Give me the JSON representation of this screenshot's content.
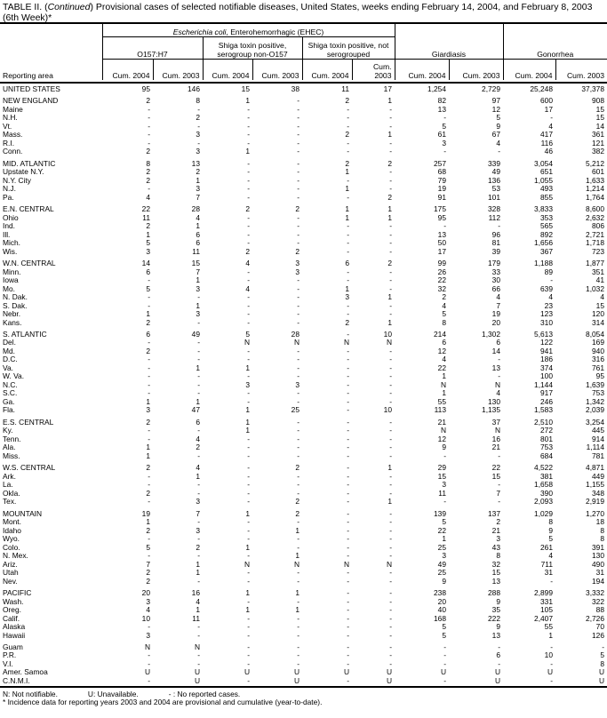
{
  "title": {
    "prefix": "TABLE II. (",
    "italic": "Continued",
    "rest": ") Provisional cases of selected notifiable diseases, United States, weeks ending February 14, 2004, and February 8, 2003 (6th Week)*"
  },
  "header": {
    "ecoli_italic": "Escherichia coli",
    "ecoli_rest": ", Enterohemorrhagic (EHEC)",
    "o157": "O157:H7",
    "shiga_non": "Shiga toxin positive, serogroup non-O157",
    "shiga_not": "Shiga toxin positive, not serogrouped",
    "giardiasis": "Giardiasis",
    "gonorrhea": "Gonorrhea",
    "reporting_area": "Reporting area",
    "cum2004": "Cum. 2004",
    "cum2003": "Cum. 2003"
  },
  "groups": [
    [
      [
        "UNITED STATES",
        "95",
        "146",
        "15",
        "38",
        "11",
        "17",
        "1,254",
        "2,729",
        "25,248",
        "37,378"
      ]
    ],
    [
      [
        "NEW ENGLAND",
        "2",
        "8",
        "1",
        "-",
        "2",
        "1",
        "82",
        "97",
        "600",
        "908"
      ],
      [
        "Maine",
        "-",
        "-",
        "-",
        "-",
        "-",
        "-",
        "13",
        "12",
        "17",
        "15"
      ],
      [
        "N.H.",
        "-",
        "2",
        "-",
        "-",
        "-",
        "-",
        "-",
        "5",
        "-",
        "15"
      ],
      [
        "Vt.",
        "-",
        "-",
        "-",
        "-",
        "-",
        "-",
        "5",
        "9",
        "4",
        "14"
      ],
      [
        "Mass.",
        "-",
        "3",
        "-",
        "-",
        "2",
        "1",
        "61",
        "67",
        "417",
        "361"
      ],
      [
        "R.I.",
        "-",
        "-",
        "-",
        "-",
        "-",
        "-",
        "3",
        "4",
        "116",
        "121"
      ],
      [
        "Conn.",
        "2",
        "3",
        "1",
        "-",
        "-",
        "-",
        "-",
        "-",
        "46",
        "382"
      ]
    ],
    [
      [
        "MID. ATLANTIC",
        "8",
        "13",
        "-",
        "-",
        "2",
        "2",
        "257",
        "339",
        "3,054",
        "5,212"
      ],
      [
        "Upstate N.Y.",
        "2",
        "2",
        "-",
        "-",
        "1",
        "-",
        "68",
        "49",
        "651",
        "601"
      ],
      [
        "N.Y. City",
        "2",
        "1",
        "-",
        "-",
        "-",
        "-",
        "79",
        "136",
        "1,055",
        "1,633"
      ],
      [
        "N.J.",
        "-",
        "3",
        "-",
        "-",
        "1",
        "-",
        "19",
        "53",
        "493",
        "1,214"
      ],
      [
        "Pa.",
        "4",
        "7",
        "-",
        "-",
        "-",
        "2",
        "91",
        "101",
        "855",
        "1,764"
      ]
    ],
    [
      [
        "E.N. CENTRAL",
        "22",
        "28",
        "2",
        "2",
        "1",
        "1",
        "175",
        "328",
        "3,833",
        "8,600"
      ],
      [
        "Ohio",
        "11",
        "4",
        "-",
        "-",
        "1",
        "1",
        "95",
        "112",
        "353",
        "2,632"
      ],
      [
        "Ind.",
        "2",
        "1",
        "-",
        "-",
        "-",
        "-",
        "-",
        "-",
        "565",
        "806"
      ],
      [
        "Ill.",
        "1",
        "6",
        "-",
        "-",
        "-",
        "-",
        "13",
        "96",
        "892",
        "2,721"
      ],
      [
        "Mich.",
        "5",
        "6",
        "-",
        "-",
        "-",
        "-",
        "50",
        "81",
        "1,656",
        "1,718"
      ],
      [
        "Wis.",
        "3",
        "11",
        "2",
        "2",
        "-",
        "-",
        "17",
        "39",
        "367",
        "723"
      ]
    ],
    [
      [
        "W.N. CENTRAL",
        "14",
        "15",
        "4",
        "3",
        "6",
        "2",
        "99",
        "179",
        "1,188",
        "1,877"
      ],
      [
        "Minn.",
        "6",
        "7",
        "-",
        "3",
        "-",
        "-",
        "26",
        "33",
        "89",
        "351"
      ],
      [
        "Iowa",
        "-",
        "1",
        "-",
        "-",
        "-",
        "-",
        "22",
        "30",
        "-",
        "41"
      ],
      [
        "Mo.",
        "5",
        "3",
        "4",
        "-",
        "1",
        "-",
        "32",
        "66",
        "639",
        "1,032"
      ],
      [
        "N. Dak.",
        "-",
        "-",
        "-",
        "-",
        "3",
        "1",
        "2",
        "4",
        "4",
        "4"
      ],
      [
        "S. Dak.",
        "-",
        "1",
        "-",
        "-",
        "-",
        "-",
        "4",
        "7",
        "23",
        "15"
      ],
      [
        "Nebr.",
        "1",
        "3",
        "-",
        "-",
        "-",
        "-",
        "5",
        "19",
        "123",
        "120"
      ],
      [
        "Kans.",
        "2",
        "-",
        "-",
        "-",
        "2",
        "1",
        "8",
        "20",
        "310",
        "314"
      ]
    ],
    [
      [
        "S. ATLANTIC",
        "6",
        "49",
        "5",
        "28",
        "-",
        "10",
        "214",
        "1,302",
        "5,613",
        "8,054"
      ],
      [
        "Del.",
        "-",
        "-",
        "N",
        "N",
        "N",
        "N",
        "6",
        "6",
        "122",
        "169"
      ],
      [
        "Md.",
        "2",
        "-",
        "-",
        "-",
        "-",
        "-",
        "12",
        "14",
        "941",
        "940"
      ],
      [
        "D.C.",
        "-",
        "-",
        "-",
        "-",
        "-",
        "-",
        "4",
        "-",
        "186",
        "316"
      ],
      [
        "Va.",
        "-",
        "1",
        "1",
        "-",
        "-",
        "-",
        "22",
        "13",
        "374",
        "761"
      ],
      [
        "W. Va.",
        "-",
        "-",
        "-",
        "-",
        "-",
        "-",
        "1",
        "-",
        "100",
        "95"
      ],
      [
        "N.C.",
        "-",
        "-",
        "3",
        "3",
        "-",
        "-",
        "N",
        "N",
        "1,144",
        "1,639"
      ],
      [
        "S.C.",
        "-",
        "-",
        "-",
        "-",
        "-",
        "-",
        "1",
        "4",
        "917",
        "753"
      ],
      [
        "Ga.",
        "1",
        "1",
        "-",
        "-",
        "-",
        "-",
        "55",
        "130",
        "246",
        "1,342"
      ],
      [
        "Fla.",
        "3",
        "47",
        "1",
        "25",
        "-",
        "10",
        "113",
        "1,135",
        "1,583",
        "2,039"
      ]
    ],
    [
      [
        "E.S. CENTRAL",
        "2",
        "6",
        "1",
        "-",
        "-",
        "-",
        "21",
        "37",
        "2,510",
        "3,254"
      ],
      [
        "Ky.",
        "-",
        "-",
        "1",
        "-",
        "-",
        "-",
        "N",
        "N",
        "272",
        "445"
      ],
      [
        "Tenn.",
        "-",
        "4",
        "-",
        "-",
        "-",
        "-",
        "12",
        "16",
        "801",
        "914"
      ],
      [
        "Ala.",
        "1",
        "2",
        "-",
        "-",
        "-",
        "-",
        "9",
        "21",
        "753",
        "1,114"
      ],
      [
        "Miss.",
        "1",
        "-",
        "-",
        "-",
        "-",
        "-",
        "-",
        "-",
        "684",
        "781"
      ]
    ],
    [
      [
        "W.S. CENTRAL",
        "2",
        "4",
        "-",
        "2",
        "-",
        "1",
        "29",
        "22",
        "4,522",
        "4,871"
      ],
      [
        "Ark.",
        "-",
        "1",
        "-",
        "-",
        "-",
        "-",
        "15",
        "15",
        "381",
        "449"
      ],
      [
        "La.",
        "-",
        "-",
        "-",
        "-",
        "-",
        "-",
        "3",
        "-",
        "1,658",
        "1,155"
      ],
      [
        "Okla.",
        "2",
        "-",
        "-",
        "-",
        "-",
        "-",
        "11",
        "7",
        "390",
        "348"
      ],
      [
        "Tex.",
        "-",
        "3",
        "-",
        "2",
        "-",
        "1",
        "-",
        "-",
        "2,093",
        "2,919"
      ]
    ],
    [
      [
        "MOUNTAIN",
        "19",
        "7",
        "1",
        "2",
        "-",
        "-",
        "139",
        "137",
        "1,029",
        "1,270"
      ],
      [
        "Mont.",
        "1",
        "-",
        "-",
        "-",
        "-",
        "-",
        "5",
        "2",
        "8",
        "18"
      ],
      [
        "Idaho",
        "2",
        "3",
        "-",
        "1",
        "-",
        "-",
        "22",
        "21",
        "9",
        "8"
      ],
      [
        "Wyo.",
        "-",
        "-",
        "-",
        "-",
        "-",
        "-",
        "1",
        "3",
        "5",
        "8"
      ],
      [
        "Colo.",
        "5",
        "2",
        "1",
        "-",
        "-",
        "-",
        "25",
        "43",
        "261",
        "391"
      ],
      [
        "N. Mex.",
        "-",
        "-",
        "-",
        "1",
        "-",
        "-",
        "3",
        "8",
        "4",
        "130"
      ],
      [
        "Ariz.",
        "7",
        "1",
        "N",
        "N",
        "N",
        "N",
        "49",
        "32",
        "711",
        "490"
      ],
      [
        "Utah",
        "2",
        "1",
        "-",
        "-",
        "-",
        "-",
        "25",
        "15",
        "31",
        "31"
      ],
      [
        "Nev.",
        "2",
        "-",
        "-",
        "-",
        "-",
        "-",
        "9",
        "13",
        "-",
        "194"
      ]
    ],
    [
      [
        "PACIFIC",
        "20",
        "16",
        "1",
        "1",
        "-",
        "-",
        "238",
        "288",
        "2,899",
        "3,332"
      ],
      [
        "Wash.",
        "3",
        "4",
        "-",
        "-",
        "-",
        "-",
        "20",
        "9",
        "331",
        "322"
      ],
      [
        "Oreg.",
        "4",
        "1",
        "1",
        "1",
        "-",
        "-",
        "40",
        "35",
        "105",
        "88"
      ],
      [
        "Calif.",
        "10",
        "11",
        "-",
        "-",
        "-",
        "-",
        "168",
        "222",
        "2,407",
        "2,726"
      ],
      [
        "Alaska",
        "-",
        "-",
        "-",
        "-",
        "-",
        "-",
        "5",
        "9",
        "55",
        "70"
      ],
      [
        "Hawaii",
        "3",
        "-",
        "-",
        "-",
        "-",
        "-",
        "5",
        "13",
        "1",
        "126"
      ]
    ],
    [
      [
        "Guam",
        "N",
        "N",
        "-",
        "-",
        "-",
        "-",
        "-",
        "-",
        "-",
        "-"
      ],
      [
        "P.R.",
        "-",
        "-",
        "-",
        "-",
        "-",
        "-",
        "-",
        "6",
        "10",
        "5"
      ],
      [
        "V.I.",
        "-",
        "-",
        "-",
        "-",
        "-",
        "-",
        "-",
        "-",
        "-",
        "8"
      ],
      [
        "Amer. Samoa",
        "U",
        "U",
        "U",
        "U",
        "U",
        "U",
        "U",
        "U",
        "U",
        "U"
      ],
      [
        "C.N.M.I.",
        "-",
        "U",
        "-",
        "U",
        "-",
        "U",
        "-",
        "U",
        "-",
        "U"
      ]
    ]
  ],
  "footnotes": {
    "n": "N: Not notifiable.",
    "u": "U: Unavailable.",
    "dash": "- : No reported cases.",
    "star": "* Incidence data for reporting years 2003 and 2004 are provisional and cumulative (year-to-date)."
  }
}
